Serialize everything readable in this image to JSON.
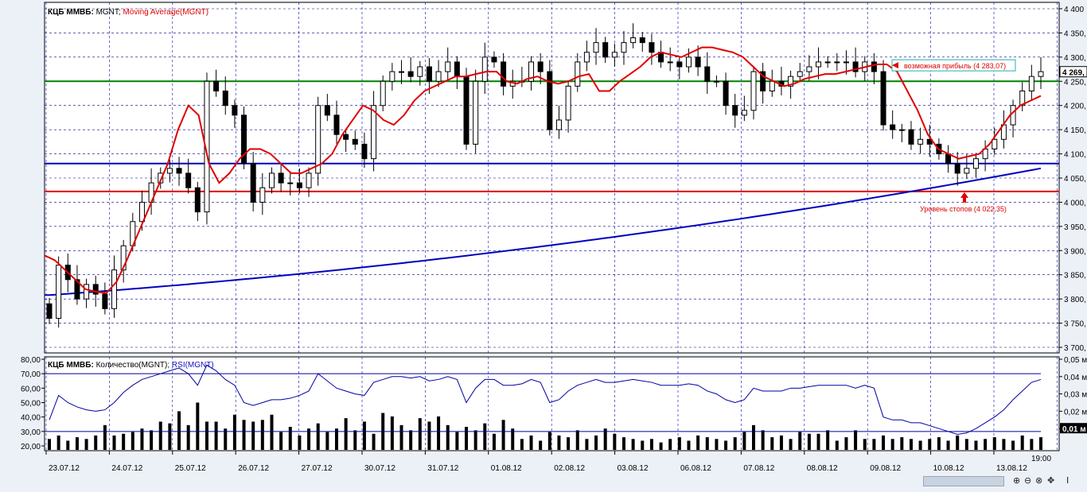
{
  "chart_data": [
    {
      "type": "candlestick",
      "title_parts": [
        {
          "text": "КЦБ ММВБ:",
          "bold": true,
          "color": "#000000"
        },
        {
          "text": "MGNT;",
          "bold": false,
          "color": "#000000"
        },
        {
          "text": "Moving Average(MGNT)",
          "bold": false,
          "color": "#e00000"
        }
      ],
      "ylim": [
        3700,
        4400
      ],
      "y_ticks": [
        3700,
        3750,
        3800,
        3850,
        3900,
        3950,
        4000,
        4050,
        4100,
        4150,
        4200,
        4250,
        4300,
        4350,
        4400
      ],
      "y_tick_labels": [
        "3 700,",
        "3 750,",
        "3 800,",
        "3 850,",
        "3 900,",
        "3 950,",
        "4 000,",
        "4 050,",
        "4 100,",
        "4 150,",
        "4 200,",
        "4 250,",
        "4 300,",
        "4 350,",
        "4 400"
      ],
      "last_price_label": "4 269,",
      "last_price": 4269,
      "close": [
        3760,
        3870,
        3840,
        3800,
        3830,
        3810,
        3780,
        3860,
        3910,
        3960,
        4000,
        4040,
        4060,
        4070,
        4060,
        4030,
        3980,
        4250,
        4230,
        4200,
        4180,
        4080,
        4000,
        4030,
        4060,
        4040,
        4040,
        4030,
        4060,
        4200,
        4180,
        4140,
        4130,
        4120,
        4090,
        4200,
        4250,
        4270,
        4270,
        4260,
        4280,
        4250,
        4270,
        4290,
        4260,
        4120,
        4250,
        4300,
        4290,
        4240,
        4250,
        4250,
        4290,
        4270,
        4150,
        4170,
        4240,
        4290,
        4310,
        4330,
        4300,
        4310,
        4330,
        4340,
        4330,
        4310,
        4290,
        4290,
        4280,
        4300,
        4280,
        4250,
        4250,
        4200,
        4180,
        4190,
        4270,
        4230,
        4250,
        4240,
        4260,
        4270,
        4280,
        4290,
        4290,
        4290,
        4290,
        4270,
        4290,
        4270,
        4160,
        4150,
        4150,
        4120,
        4130,
        4120,
        4100,
        4080,
        4060,
        4070,
        4090,
        4110,
        4130,
        4160,
        4200,
        4230,
        4260,
        4270
      ],
      "ma_short": [
        3890,
        3880,
        3860,
        3840,
        3820,
        3815,
        3812,
        3835,
        3880,
        3930,
        3980,
        4030,
        4080,
        4150,
        4200,
        4180,
        4080,
        4040,
        4060,
        4090,
        4110,
        4110,
        4100,
        4080,
        4060,
        4060,
        4070,
        4080,
        4100,
        4140,
        4170,
        4200,
        4190,
        4170,
        4160,
        4180,
        4210,
        4230,
        4240,
        4250,
        4260,
        4260,
        4265,
        4270,
        4270,
        4250,
        4245,
        4255,
        4260,
        4250,
        4245,
        4250,
        4260,
        4265,
        4230,
        4230,
        4250,
        4265,
        4280,
        4300,
        4310,
        4305,
        4300,
        4310,
        4320,
        4320,
        4315,
        4310,
        4300,
        4280,
        4260,
        4250,
        4240,
        4245,
        4255,
        4260,
        4265,
        4265,
        4270,
        4275,
        4280,
        4285,
        4285,
        4270,
        4230,
        4190,
        4140,
        4110,
        4100,
        4090,
        4095,
        4100,
        4120,
        4150,
        4180,
        4200,
        4210,
        4220
      ],
      "ma_long_start": 3808,
      "ma_long_end": 4070,
      "hlines": [
        {
          "value": 4250,
          "color": "#008000"
        },
        {
          "value": 4080,
          "color": "#0000c0"
        },
        {
          "value": 4022.35,
          "color": "#e00000"
        }
      ],
      "annotations": [
        {
          "text": "возможная прибыль (4 283,07)",
          "value": 4283.07,
          "color": "#e00000"
        },
        {
          "text": "Уровень стопов (4 022,35)",
          "value": 4022.35,
          "color": "#e00000"
        }
      ]
    },
    {
      "type": "bar+line",
      "title_parts": [
        {
          "text": "КЦБ ММВБ:",
          "bold": true,
          "color": "#000000"
        },
        {
          "text": "Количество(MGNT);",
          "bold": false,
          "color": "#000000"
        },
        {
          "text": "RSI(MGNT)",
          "bold": false,
          "color": "#1010c0"
        }
      ],
      "left_ticks": [
        20,
        30,
        40,
        50,
        60,
        70,
        80
      ],
      "left_tick_labels": [
        "20,00",
        "30,00",
        "40,00",
        "50,00",
        "60,00",
        "70,00",
        "80,00"
      ],
      "right_tick_labels": [
        "0,01 м",
        "0,02 м",
        "0,03 м",
        "0,04 м",
        "0,05 м"
      ],
      "right_ticks": [
        0.01,
        0.02,
        0.03,
        0.04,
        0.05
      ],
      "volume_highlight_label": "0,01 м",
      "rsi_levels": [
        70,
        30
      ],
      "volume": [
        0.004,
        0.006,
        0.003,
        0.005,
        0.004,
        0.006,
        0.012,
        0.006,
        0.007,
        0.008,
        0.01,
        0.009,
        0.014,
        0.013,
        0.02,
        0.012,
        0.025,
        0.014,
        0.014,
        0.01,
        0.018,
        0.015,
        0.014,
        0.015,
        0.018,
        0.008,
        0.011,
        0.006,
        0.01,
        0.013,
        0.008,
        0.01,
        0.016,
        0.009,
        0.014,
        0.007,
        0.019,
        0.017,
        0.012,
        0.009,
        0.016,
        0.014,
        0.017,
        0.012,
        0.008,
        0.011,
        0.009,
        0.013,
        0.007,
        0.015,
        0.01,
        0.004,
        0.006,
        0.003,
        0.008,
        0.006,
        0.005,
        0.009,
        0.004,
        0.006,
        0.01,
        0.007,
        0.005,
        0.004,
        0.003,
        0.004,
        0.002,
        0.004,
        0.005,
        0.003,
        0.006,
        0.005,
        0.004,
        0.003,
        0.005,
        0.008,
        0.012,
        0.009,
        0.005,
        0.006,
        0.004,
        0.008,
        0.007,
        0.007,
        0.009,
        0.003,
        0.005,
        0.009,
        0.004,
        0.004,
        0.006,
        0.004,
        0.005,
        0.004,
        0.003,
        0.004,
        0.005,
        0.003,
        0.006,
        0.004,
        0.003,
        0.004,
        0.005,
        0.004,
        0.003,
        0.006,
        0.004,
        0.005
      ],
      "rsi": [
        38,
        55,
        50,
        47,
        45,
        44,
        45,
        50,
        57,
        62,
        66,
        68,
        70,
        72,
        74,
        70,
        62,
        76,
        72,
        66,
        62,
        50,
        48,
        50,
        52,
        52,
        53,
        55,
        58,
        70,
        65,
        60,
        58,
        56,
        55,
        64,
        66,
        68,
        68,
        67,
        68,
        65,
        66,
        68,
        66,
        50,
        60,
        66,
        66,
        62,
        62,
        63,
        66,
        64,
        50,
        52,
        58,
        62,
        64,
        66,
        64,
        64,
        65,
        66,
        65,
        64,
        62,
        62,
        62,
        63,
        62,
        58,
        56,
        52,
        50,
        52,
        60,
        58,
        58,
        58,
        60,
        60,
        61,
        62,
        62,
        62,
        62,
        60,
        62,
        60,
        40,
        38,
        38,
        36,
        36,
        34,
        32,
        30,
        28,
        29,
        32,
        36,
        40,
        45,
        52,
        58,
        64,
        66
      ],
      "dates": [
        "23.07.12",
        "24.07.12",
        "25.07.12",
        "26.07.12",
        "27.07.12",
        "30.07.12",
        "31.07.12",
        "01.08.12",
        "02.08.12",
        "03.08.12",
        "06.08.12",
        "07.08.12",
        "08.08.12",
        "09.08.12",
        "10.08.12",
        "13.08.12"
      ],
      "time_label": "19:00"
    }
  ],
  "navigation": {
    "icons": [
      "zoom-in-icon",
      "zoom-out-icon",
      "reset-zoom-icon",
      "move-icon",
      "cursor-icon"
    ],
    "glyphs": [
      "⊕",
      "⊖",
      "⊗",
      "✥",
      "I"
    ]
  },
  "colors": {
    "background": "#ecf1f8",
    "plot_bg": "#ffffff",
    "grid": "#0000b0",
    "up_candle": "#ffffff",
    "down_candle": "#000000",
    "ma_short": "#e00000",
    "ma_long": "#0000c0",
    "rsi": "#0000a0",
    "volume": "#000000"
  }
}
